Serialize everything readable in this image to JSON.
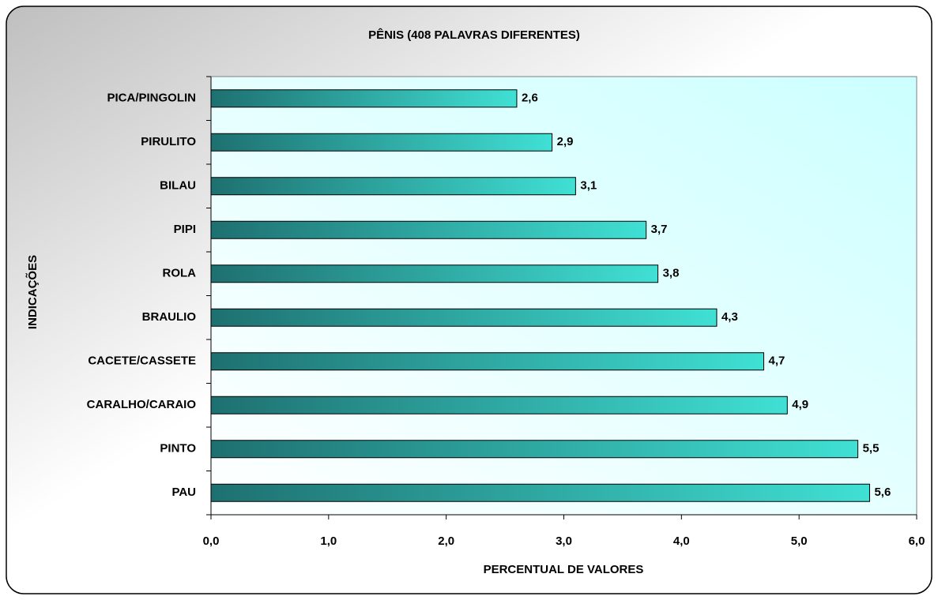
{
  "chart_data": {
    "type": "bar",
    "orientation": "horizontal",
    "title": "PÊNIS  (408 PALAVRAS DIFERENTES)",
    "x_label": "PERCENTUAL DE VALORES",
    "y_label": "INDICAÇÕES",
    "categories": [
      "PICA/PINGOLIN",
      "PIRULITO",
      "BILAU",
      "PIPI",
      "ROLA",
      "BRAULIO",
      "CACETE/CASSETE",
      "CARALHO/CARAIO",
      "PINTO",
      "PAU"
    ],
    "values": [
      2.6,
      2.9,
      3.1,
      3.7,
      3.8,
      4.3,
      4.7,
      4.9,
      5.5,
      5.6
    ],
    "value_labels": [
      "2,6",
      "2,9",
      "3,1",
      "3,7",
      "3,8",
      "4,3",
      "4,7",
      "4,9",
      "5,5",
      "5,6"
    ],
    "color": "#2fbdb4",
    "xlim": [
      0,
      6
    ],
    "xticks": [
      {
        "value": 0,
        "label": "0,0"
      },
      {
        "value": 1,
        "label": "1,0"
      },
      {
        "value": 2,
        "label": "2,0"
      },
      {
        "value": 3,
        "label": "3,0"
      },
      {
        "value": 4,
        "label": "4,0"
      },
      {
        "value": 5,
        "label": "5,0"
      },
      {
        "value": 6,
        "label": "6,0"
      }
    ],
    "grid": false
  }
}
